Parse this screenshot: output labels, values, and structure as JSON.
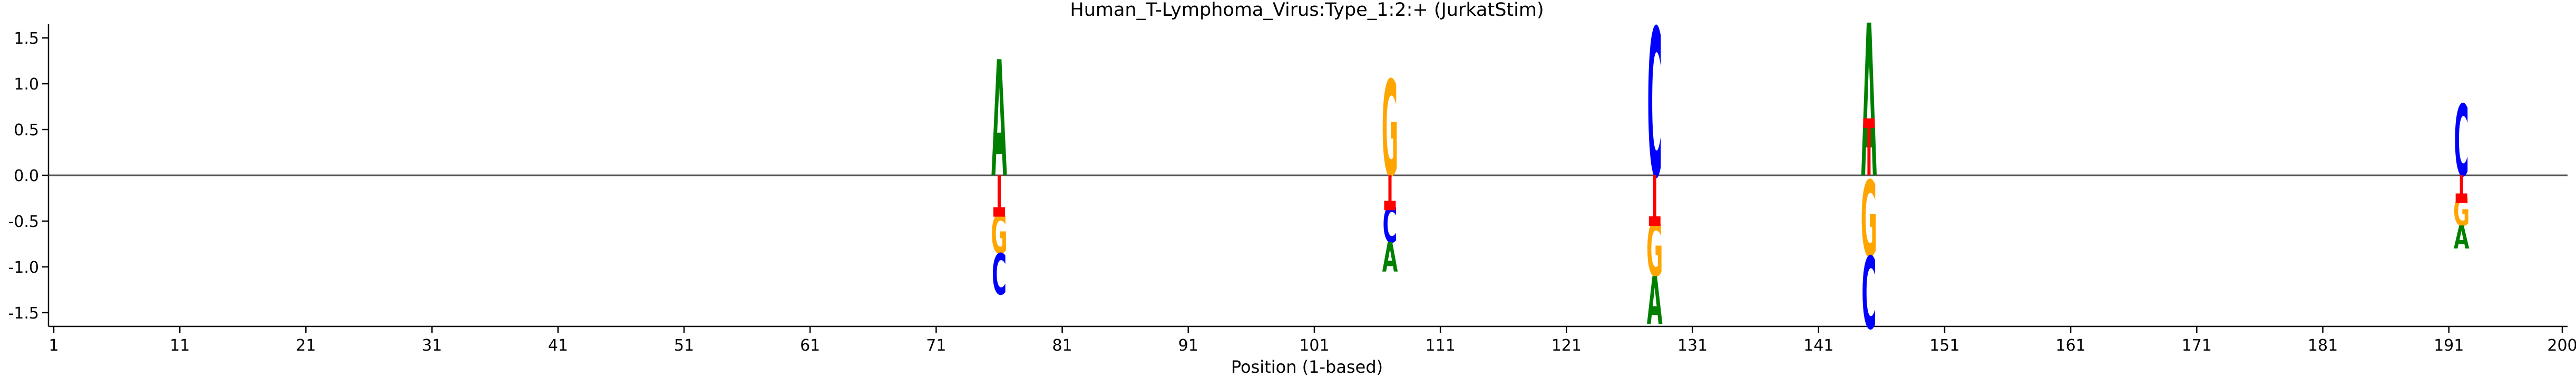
{
  "chart_data": {
    "type": "sequence-logo",
    "title": "Human_T-Lymphoma_Virus:Type_1:2:+  (JurkatStim)",
    "xlabel": "Position (1-based)",
    "ylabel": "",
    "xlim": [
      1,
      200
    ],
    "ylim": [
      -1.65,
      1.65
    ],
    "x_ticks": [
      "1",
      "11",
      "21",
      "31",
      "41",
      "51",
      "61",
      "71",
      "81",
      "91",
      "101",
      "111",
      "121",
      "131",
      "141",
      "151",
      "161",
      "171",
      "181",
      "191",
      "200"
    ],
    "y_ticks": [
      "1.5",
      "1.0",
      "0.5",
      "0.0",
      "-0.5",
      "-1.0",
      "-1.5"
    ],
    "colors": {
      "A": "#008000",
      "C": "#0000ff",
      "G": "#ffa500",
      "T": "#ff0000",
      "error_bar": "#ff0000",
      "zero_line": "#555555"
    },
    "positions": [
      {
        "x": 76,
        "above": [
          {
            "base": "A",
            "from": 0.0,
            "to": 1.27
          }
        ],
        "below": [
          {
            "base": "G",
            "from": -0.42,
            "to": -0.85
          },
          {
            "base": "C",
            "from": -0.85,
            "to": -1.3
          }
        ],
        "error_center": -0.4,
        "error_low": 0.0,
        "error_high": -0.4
      },
      {
        "x": 107,
        "above": [
          {
            "base": "G",
            "from": 0.0,
            "to": 1.05
          }
        ],
        "below": [
          {
            "base": "C",
            "from": -0.33,
            "to": -0.73
          },
          {
            "base": "A",
            "from": -0.73,
            "to": -1.05
          }
        ],
        "error_center": -0.33,
        "error_low": 0.0,
        "error_high": -0.33
      },
      {
        "x": 128,
        "above": [
          {
            "base": "C",
            "from": 0.0,
            "to": 1.62
          }
        ],
        "below": [
          {
            "base": "G",
            "from": -0.5,
            "to": -1.1
          },
          {
            "base": "A",
            "from": -1.1,
            "to": -1.62
          }
        ],
        "error_center": -0.5,
        "error_low": 0.0,
        "error_high": -0.5
      },
      {
        "x": 145,
        "above": [
          {
            "base": "A",
            "from": 0.0,
            "to": 1.67
          }
        ],
        "below": [
          {
            "base": "G",
            "from": -0.05,
            "to": -0.88
          },
          {
            "base": "C",
            "from": -0.88,
            "to": -1.67
          }
        ],
        "error_center": 0.57,
        "error_low": 0.0,
        "error_high": 0.57
      },
      {
        "x": 192,
        "above": [
          {
            "base": "C",
            "from": 0.0,
            "to": 0.78
          }
        ],
        "below": [
          {
            "base": "G",
            "from": -0.23,
            "to": -0.55
          },
          {
            "base": "A",
            "from": -0.55,
            "to": -0.8
          }
        ],
        "error_center": -0.25,
        "error_low": 0.0,
        "error_high": -0.25
      }
    ]
  }
}
